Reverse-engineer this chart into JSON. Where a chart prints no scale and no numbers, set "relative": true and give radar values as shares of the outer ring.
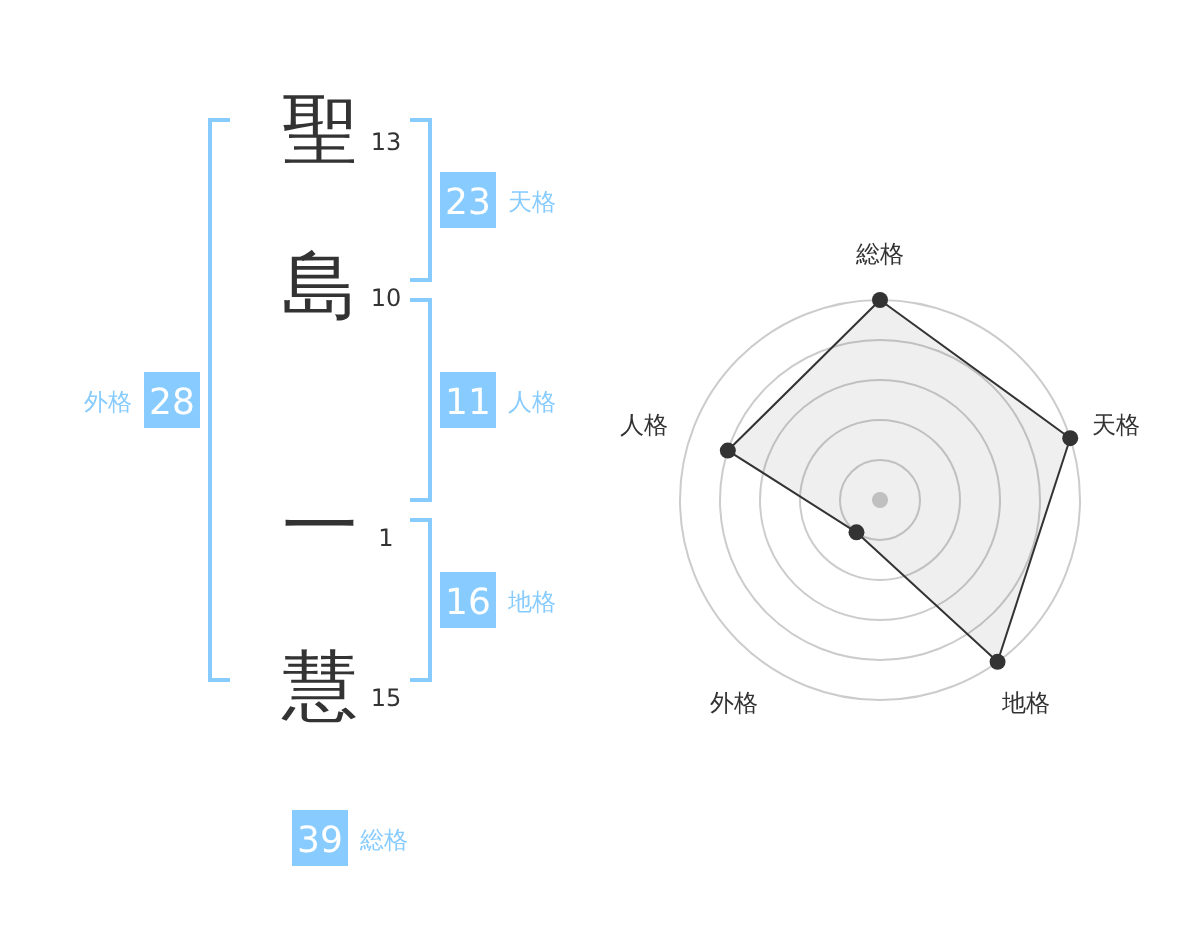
{
  "chart_data": [
    {
      "type": "other",
      "categories": [
        "聖",
        "島",
        "一",
        "慧"
      ],
      "values": [
        13,
        10,
        1,
        15
      ],
      "data_labels": true
    },
    {
      "type": "other",
      "categories": [
        "天格",
        "人格",
        "地格",
        "外格",
        "総格"
      ],
      "values": [
        23,
        11,
        16,
        28,
        39
      ],
      "color": "#88ccff",
      "data_labels": true
    },
    {
      "type": "radar",
      "categories": [
        "総格",
        "天格",
        "地格",
        "外格",
        "人格"
      ],
      "relative": true,
      "marker": "circle",
      "series": [
        {
          "color": "#333333",
          "values": [
            1,
            1,
            1,
            0.2,
            0.8
          ]
        }
      ]
    }
  ]
}
